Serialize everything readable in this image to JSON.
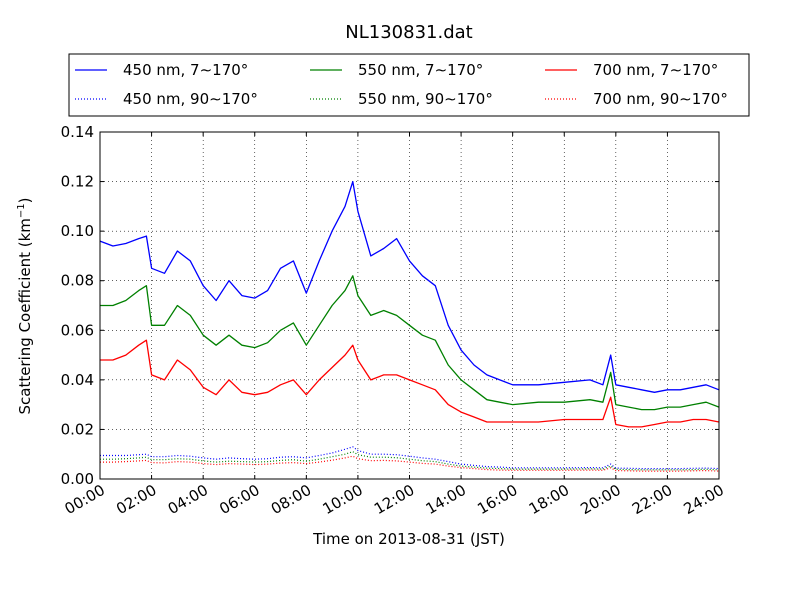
{
  "chart_data": {
    "type": "line",
    "title": "NL130831.dat",
    "xlabel": "Time on 2013-08-31 (JST)",
    "ylabel": "Scattering Coefficient (km",
    "ylabel_sup": "−1",
    "ylabel_close": ")",
    "xlim": [
      0,
      24
    ],
    "ylim": [
      0,
      0.14
    ],
    "x_ticks": [
      0,
      2,
      4,
      6,
      8,
      10,
      12,
      14,
      16,
      18,
      20,
      22,
      24
    ],
    "x_tick_labels": [
      "00:00",
      "02:00",
      "04:00",
      "06:00",
      "08:00",
      "10:00",
      "12:00",
      "14:00",
      "16:00",
      "18:00",
      "20:00",
      "22:00",
      "24:00"
    ],
    "y_ticks": [
      0,
      0.02,
      0.04,
      0.06,
      0.08,
      0.1,
      0.12,
      0.14
    ],
    "y_tick_labels": [
      "0.00",
      "0.02",
      "0.04",
      "0.06",
      "0.08",
      "0.10",
      "0.12",
      "0.14"
    ],
    "grid": true,
    "legend_placement": "top",
    "x": [
      0,
      0.5,
      1,
      1.5,
      1.8,
      2,
      2.5,
      3,
      3.5,
      4,
      4.5,
      5,
      5.5,
      6,
      6.5,
      7,
      7.5,
      8,
      8.5,
      9,
      9.5,
      9.8,
      10,
      10.5,
      11,
      11.5,
      12,
      12.5,
      13,
      13.5,
      14,
      14.5,
      15,
      15.5,
      16,
      17,
      18,
      19,
      19.5,
      19.8,
      20,
      20.5,
      21,
      21.5,
      22,
      22.5,
      23,
      23.5,
      24
    ],
    "series": [
      {
        "name": "450 nm, 7∼170°",
        "color": "#0000ff",
        "style": "solid",
        "values": [
          0.096,
          0.094,
          0.095,
          0.097,
          0.098,
          0.085,
          0.083,
          0.092,
          0.088,
          0.078,
          0.072,
          0.08,
          0.074,
          0.073,
          0.076,
          0.085,
          0.088,
          0.075,
          0.088,
          0.1,
          0.11,
          0.12,
          0.108,
          0.09,
          0.093,
          0.097,
          0.088,
          0.082,
          0.078,
          0.062,
          0.052,
          0.046,
          0.042,
          0.04,
          0.038,
          0.038,
          0.039,
          0.04,
          0.038,
          0.05,
          0.038,
          0.037,
          0.036,
          0.035,
          0.036,
          0.036,
          0.037,
          0.038,
          0.036
        ]
      },
      {
        "name": "450 nm, 90∼170°",
        "color": "#0000ff",
        "style": "dotted",
        "values": [
          0.0095,
          0.0095,
          0.0095,
          0.0098,
          0.01,
          0.009,
          0.009,
          0.0095,
          0.0092,
          0.0085,
          0.008,
          0.0085,
          0.0082,
          0.008,
          0.0082,
          0.0088,
          0.009,
          0.0085,
          0.0095,
          0.0105,
          0.012,
          0.013,
          0.0115,
          0.01,
          0.01,
          0.0098,
          0.0092,
          0.0085,
          0.008,
          0.007,
          0.006,
          0.0055,
          0.005,
          0.0048,
          0.0045,
          0.0045,
          0.0045,
          0.0046,
          0.0045,
          0.006,
          0.0044,
          0.0043,
          0.0042,
          0.0042,
          0.0042,
          0.0042,
          0.0043,
          0.0044,
          0.0042
        ]
      },
      {
        "name": "550 nm, 7∼170°",
        "color": "#008000",
        "style": "solid",
        "values": [
          0.07,
          0.07,
          0.072,
          0.076,
          0.078,
          0.062,
          0.062,
          0.07,
          0.066,
          0.058,
          0.054,
          0.058,
          0.054,
          0.053,
          0.055,
          0.06,
          0.063,
          0.054,
          0.062,
          0.07,
          0.076,
          0.082,
          0.074,
          0.066,
          0.068,
          0.066,
          0.062,
          0.058,
          0.056,
          0.046,
          0.04,
          0.036,
          0.032,
          0.031,
          0.03,
          0.031,
          0.031,
          0.032,
          0.031,
          0.043,
          0.03,
          0.029,
          0.028,
          0.028,
          0.029,
          0.029,
          0.03,
          0.031,
          0.029
        ]
      },
      {
        "name": "550 nm, 90∼170°",
        "color": "#008000",
        "style": "dotted",
        "values": [
          0.008,
          0.008,
          0.0082,
          0.0085,
          0.0088,
          0.0078,
          0.0078,
          0.0082,
          0.008,
          0.0073,
          0.0068,
          0.0072,
          0.007,
          0.0068,
          0.007,
          0.0075,
          0.0078,
          0.0072,
          0.008,
          0.009,
          0.01,
          0.011,
          0.0098,
          0.0088,
          0.0088,
          0.0086,
          0.008,
          0.0074,
          0.007,
          0.006,
          0.0052,
          0.0048,
          0.0044,
          0.0042,
          0.004,
          0.004,
          0.004,
          0.0041,
          0.004,
          0.0052,
          0.0039,
          0.0038,
          0.0037,
          0.0037,
          0.0037,
          0.0037,
          0.0038,
          0.0039,
          0.0037
        ]
      },
      {
        "name": "700 nm, 7∼170°",
        "color": "#ff0000",
        "style": "solid",
        "values": [
          0.048,
          0.048,
          0.05,
          0.054,
          0.056,
          0.042,
          0.04,
          0.048,
          0.044,
          0.037,
          0.034,
          0.04,
          0.035,
          0.034,
          0.035,
          0.038,
          0.04,
          0.034,
          0.04,
          0.045,
          0.05,
          0.054,
          0.048,
          0.04,
          0.042,
          0.042,
          0.04,
          0.038,
          0.036,
          0.03,
          0.027,
          0.025,
          0.023,
          0.023,
          0.023,
          0.023,
          0.024,
          0.024,
          0.024,
          0.033,
          0.022,
          0.021,
          0.021,
          0.022,
          0.023,
          0.023,
          0.024,
          0.024,
          0.023
        ]
      },
      {
        "name": "700 nm, 90∼170°",
        "color": "#ff0000",
        "style": "dotted",
        "values": [
          0.0068,
          0.0068,
          0.007,
          0.0073,
          0.0075,
          0.0066,
          0.0065,
          0.007,
          0.0068,
          0.0062,
          0.0058,
          0.0062,
          0.006,
          0.0058,
          0.006,
          0.0064,
          0.0066,
          0.0062,
          0.0068,
          0.0076,
          0.0085,
          0.0092,
          0.0082,
          0.0074,
          0.0075,
          0.0073,
          0.0068,
          0.0063,
          0.006,
          0.0052,
          0.0046,
          0.0042,
          0.0038,
          0.0036,
          0.0035,
          0.0035,
          0.0035,
          0.0036,
          0.0035,
          0.0045,
          0.0034,
          0.0033,
          0.0032,
          0.0032,
          0.0032,
          0.0032,
          0.0033,
          0.0034,
          0.0032
        ]
      }
    ]
  }
}
